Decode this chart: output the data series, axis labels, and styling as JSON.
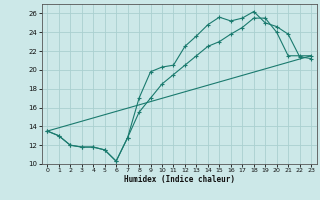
{
  "xlabel": "Humidex (Indice chaleur)",
  "bg_color": "#cce8e8",
  "grid_color": "#aad0d0",
  "line_color": "#1a7a6e",
  "xlim": [
    -0.5,
    23.5
  ],
  "ylim": [
    10,
    27
  ],
  "xticks": [
    0,
    1,
    2,
    3,
    4,
    5,
    6,
    7,
    8,
    9,
    10,
    11,
    12,
    13,
    14,
    15,
    16,
    17,
    18,
    19,
    20,
    21,
    22,
    23
  ],
  "yticks": [
    10,
    12,
    14,
    16,
    18,
    20,
    22,
    24,
    26
  ],
  "line1_x": [
    0,
    1,
    2,
    3,
    4,
    5,
    6,
    7,
    8,
    9,
    10,
    11,
    12,
    13,
    14,
    15,
    16,
    17,
    18,
    19,
    20,
    21,
    22,
    23
  ],
  "line1_y": [
    13.5,
    13.0,
    12.0,
    11.8,
    11.8,
    11.5,
    10.3,
    12.8,
    17.0,
    19.8,
    20.3,
    20.5,
    22.5,
    23.6,
    24.8,
    25.6,
    25.2,
    25.5,
    26.2,
    25.0,
    24.6,
    23.8,
    21.4,
    21.2
  ],
  "line2_x": [
    0,
    1,
    2,
    3,
    4,
    5,
    6,
    7,
    8,
    9,
    10,
    11,
    12,
    13,
    14,
    15,
    16,
    17,
    18,
    19,
    20,
    21,
    22,
    23
  ],
  "line2_y": [
    13.5,
    13.0,
    12.0,
    11.8,
    11.8,
    11.5,
    10.3,
    12.8,
    15.5,
    17.0,
    18.5,
    19.5,
    20.5,
    21.5,
    22.5,
    23.0,
    23.8,
    24.5,
    25.5,
    25.5,
    24.0,
    21.5,
    21.5,
    21.5
  ],
  "line3_x": [
    0,
    23
  ],
  "line3_y": [
    13.5,
    21.5
  ]
}
